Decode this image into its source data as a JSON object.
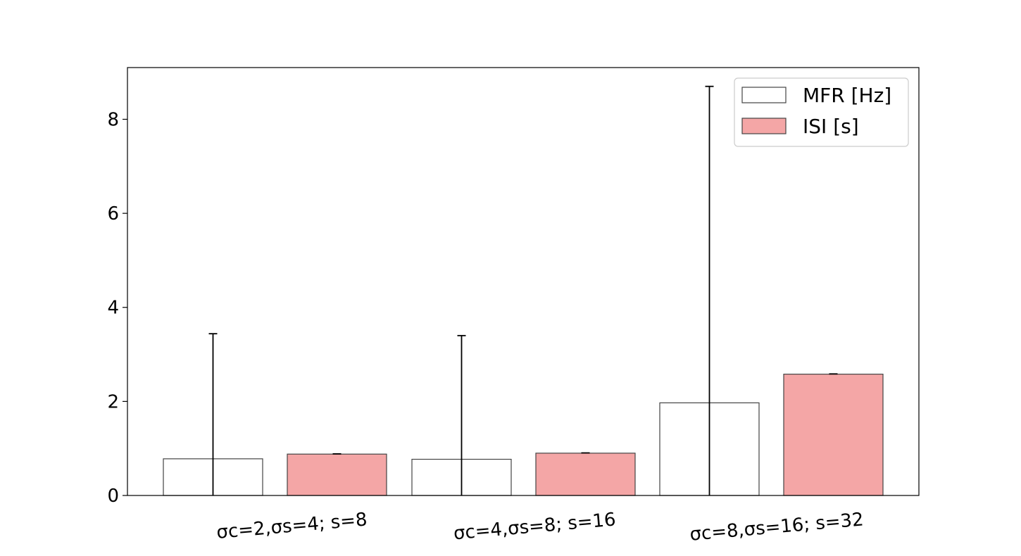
{
  "chart_data": {
    "type": "bar",
    "categories": [
      "σc=2,σs=4; s=8",
      "σc=4,σs=8; s=16",
      "σc=8,σs=16; s=32"
    ],
    "series": [
      {
        "name": "MFR [Hz]",
        "values": [
          0.78,
          0.77,
          1.97
        ],
        "errors": [
          2.66,
          2.63,
          6.73
        ],
        "color": "#ffffff",
        "edge_color": "#444444"
      },
      {
        "name": "ISI [s]",
        "values": [
          0.88,
          0.9,
          2.58
        ],
        "errors": [
          0.005,
          0.005,
          0.005
        ],
        "color": "#f4a6a6",
        "edge_color": "#444444"
      }
    ],
    "title": "",
    "xlabel": "",
    "ylabel": "",
    "ylim": [
      0,
      9.1
    ],
    "yticks": [
      "0",
      "2",
      "4",
      "6",
      "8"
    ],
    "grid": false,
    "legend_position": "top-right"
  }
}
